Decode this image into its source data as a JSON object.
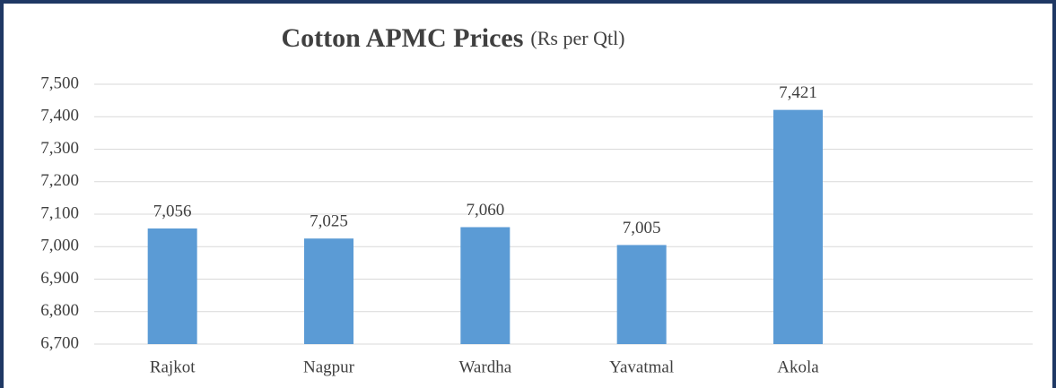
{
  "chart_data": {
    "type": "bar",
    "title": "Cotton APMC Prices",
    "subtitle": "(Rs per Qtl)",
    "categories": [
      "Rajkot",
      "Nagpur",
      "Wardha",
      "Yavatmal",
      "Akola",
      null
    ],
    "values": [
      7056,
      7025,
      7060,
      7005,
      7421,
      null
    ],
    "value_labels": [
      "7,056",
      "7,025",
      "7,060",
      "7,005",
      "7,421",
      null
    ],
    "color": "#5b9bd5",
    "ylim": [
      6700,
      7500
    ],
    "yticks": [
      {
        "value": 6700,
        "label": "6,700"
      },
      {
        "value": 6800,
        "label": "6,800"
      },
      {
        "value": 6900,
        "label": "6,900"
      },
      {
        "value": 7000,
        "label": "7,000"
      },
      {
        "value": 7100,
        "label": "7,100"
      },
      {
        "value": 7200,
        "label": "7,200"
      },
      {
        "value": 7300,
        "label": "7,300"
      },
      {
        "value": 7400,
        "label": "7,400"
      },
      {
        "value": 7500,
        "label": "7,500"
      }
    ],
    "grid": true
  }
}
